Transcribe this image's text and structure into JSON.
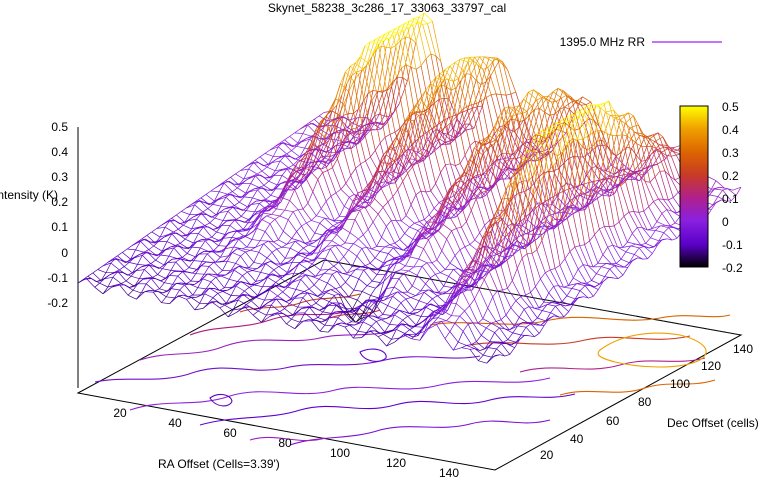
{
  "chart_data": {
    "type": "surface3d",
    "title": "Skynet_58238_3c286_17_33063_33797_cal",
    "legend": {
      "label": "1395.0 MHz RR",
      "color": "#a020f0",
      "placement": "top-right"
    },
    "zlabel": "Intensity (K)",
    "xlabel": "RA Offset (Cells=3.39')",
    "ylabel": "Dec Offset (cells)",
    "zlim": [
      -0.2,
      0.5
    ],
    "xlim": [
      0,
      150
    ],
    "ylim": [
      0,
      150
    ],
    "z_ticks": [
      "0.5",
      "0.4",
      "0.3",
      "0.2",
      "0.1",
      "0",
      "-0.1",
      "-0.2"
    ],
    "x_ticks": [
      "20",
      "40",
      "60",
      "80",
      "100",
      "120",
      "140"
    ],
    "y_ticks": [
      "20",
      "40",
      "60",
      "80",
      "100",
      "120",
      "140"
    ],
    "colorbar": {
      "range": [
        -0.2,
        0.5
      ],
      "ticks": [
        "0.5",
        "0.4",
        "0.3",
        "0.2",
        "0.1",
        "0",
        "-0.1",
        "-0.2"
      ],
      "colors": [
        "#000000",
        "#5a00c8",
        "#8a20e0",
        "#b0208c",
        "#c83a28",
        "#dc6400",
        "#f0a000",
        "#ffff00"
      ]
    },
    "ridges": [
      {
        "x_center": 37,
        "peak_y": 128,
        "peak_z": 0.47,
        "base_z": -0.08
      },
      {
        "x_center": 64,
        "peak_y": 120,
        "peak_z": 0.36,
        "base_z": -0.1
      },
      {
        "x_center": 94,
        "peak_y": 110,
        "peak_z": 0.3,
        "base_z": -0.12
      },
      {
        "x_center": 128,
        "peak_y": 80,
        "peak_z": 0.49,
        "base_z": -0.14
      }
    ],
    "notable_min": {
      "x": 85,
      "y": 30,
      "z": -0.2
    },
    "grid": false,
    "contours": true
  }
}
